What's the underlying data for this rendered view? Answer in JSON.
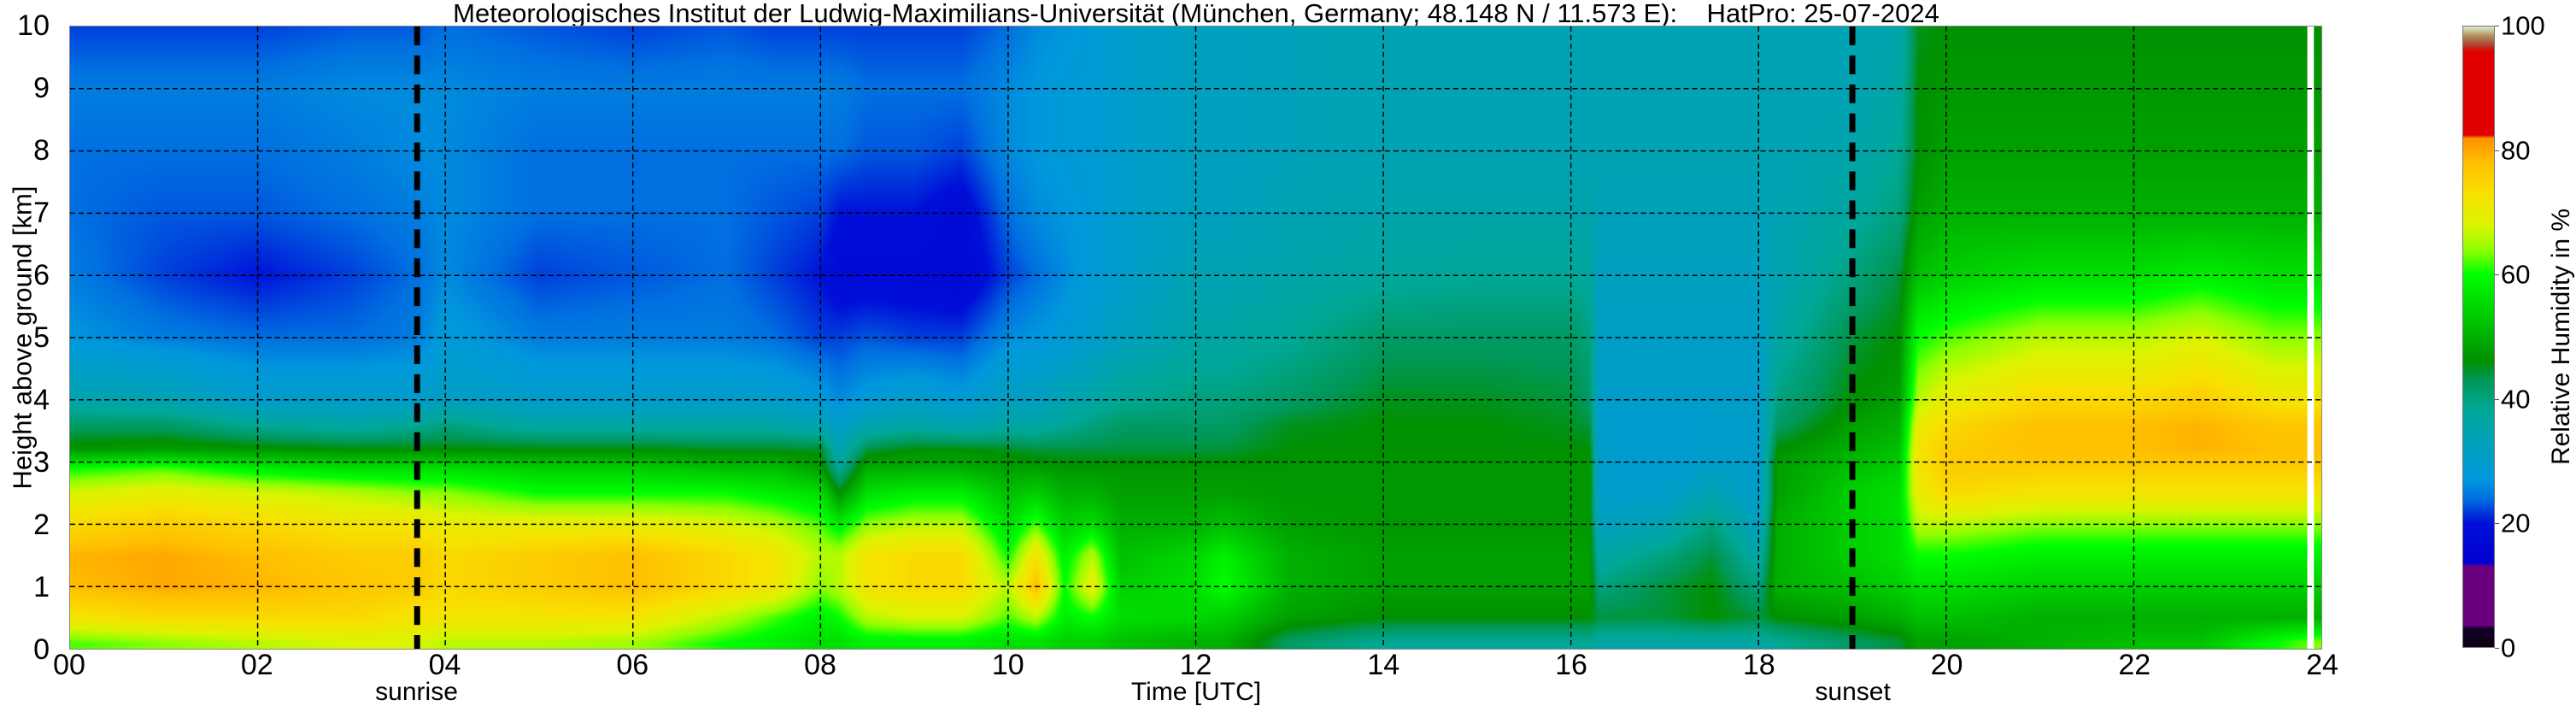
{
  "chart_data": {
    "type": "heatmap",
    "title": "Meteorologisches Institut der Ludwig-Maximilians-Universität (München, Germany; 48.148 N / 11.573 E):    HatPro: 25-07-2024",
    "xlabel": "Time [UTC]",
    "ylabel": "Height above ground [km]",
    "colorbar_label": "Relative Humidity in %",
    "xlim": [
      0,
      24
    ],
    "ylim": [
      0,
      10
    ],
    "clim": [
      0,
      100
    ],
    "grid": true,
    "x_ticks": [
      "00",
      "02",
      "04",
      "06",
      "08",
      "10",
      "12",
      "14",
      "16",
      "18",
      "20",
      "22",
      "24"
    ],
    "y_ticks": [
      "0",
      "1",
      "2",
      "3",
      "4",
      "5",
      "6",
      "7",
      "8",
      "9",
      "10"
    ],
    "colorbar_ticks": [
      "0",
      "20",
      "40",
      "60",
      "80",
      "100"
    ],
    "markers": [
      {
        "label": "sunrise",
        "time": 3.7
      },
      {
        "label": "sunset",
        "time": 19.0
      }
    ],
    "data_gap": [
      23.85,
      23.92
    ],
    "heights_km": [
      0.1,
      0.5,
      1,
      1.5,
      2,
      2.5,
      2.9,
      3.2,
      3.6,
      4,
      5,
      6,
      7,
      8,
      9,
      10
    ],
    "times_h": [
      0,
      1,
      2,
      3,
      3.7,
      4,
      5,
      6,
      7,
      7.5,
      8,
      8.2,
      8.5,
      9,
      9.5,
      10,
      10.3,
      10.6,
      10.9,
      11.2,
      12,
      12.3,
      13,
      14,
      15,
      16,
      16.2,
      16.3,
      17,
      17.5,
      18,
      18.2,
      19,
      19.5,
      19.7,
      20,
      21,
      22,
      22.7,
      23.5,
      24
    ],
    "rh_percent": [
      [
        62,
        72,
        78,
        79,
        74,
        68,
        60,
        47,
        42,
        35,
        27,
        25,
        24,
        24,
        25,
        22
      ],
      [
        64,
        74,
        80,
        80,
        76,
        70,
        62,
        48,
        42,
        34,
        25,
        22,
        23,
        24,
        25,
        22
      ],
      [
        66,
        74,
        79,
        78,
        74,
        68,
        58,
        47,
        38,
        30,
        24,
        20,
        23,
        24,
        25,
        22
      ],
      [
        68,
        74,
        77,
        76,
        72,
        66,
        56,
        46,
        36,
        30,
        24,
        22,
        24,
        25,
        26,
        23
      ],
      [
        68,
        72,
        76,
        76,
        72,
        64,
        56,
        46,
        38,
        30,
        25,
        24,
        25,
        26,
        26,
        23
      ],
      [
        66,
        72,
        74,
        74,
        70,
        64,
        56,
        46,
        40,
        32,
        28,
        26,
        26,
        26,
        26,
        24
      ],
      [
        66,
        72,
        76,
        76,
        70,
        60,
        54,
        46,
        36,
        30,
        25,
        22,
        24,
        24,
        25,
        23
      ],
      [
        65,
        72,
        78,
        78,
        70,
        60,
        54,
        46,
        36,
        30,
        25,
        23,
        24,
        24,
        25,
        22
      ],
      [
        60,
        66,
        74,
        74,
        68,
        60,
        52,
        45,
        36,
        30,
        25,
        24,
        24,
        24,
        25,
        23
      ],
      [
        58,
        62,
        72,
        72,
        66,
        58,
        52,
        45,
        36,
        30,
        24,
        22,
        23,
        24,
        25,
        22
      ],
      [
        56,
        58,
        64,
        66,
        62,
        56,
        48,
        45,
        34,
        28,
        22,
        20,
        22,
        24,
        25,
        22
      ],
      [
        56,
        60,
        66,
        66,
        58,
        46,
        38,
        34,
        30,
        26,
        22,
        18,
        20,
        24,
        25,
        22
      ],
      [
        58,
        66,
        72,
        72,
        64,
        56,
        50,
        44,
        34,
        28,
        23,
        18,
        20,
        23,
        24,
        22
      ],
      [
        58,
        68,
        74,
        74,
        66,
        58,
        50,
        46,
        36,
        30,
        22,
        18,
        20,
        23,
        24,
        22
      ],
      [
        58,
        68,
        74,
        74,
        66,
        58,
        50,
        46,
        34,
        28,
        22,
        17,
        18,
        22,
        24,
        22
      ],
      [
        56,
        62,
        66,
        60,
        56,
        52,
        48,
        45,
        36,
        32,
        26,
        22,
        24,
        26,
        26,
        24
      ],
      [
        56,
        66,
        78,
        72,
        62,
        54,
        48,
        44,
        36,
        32,
        27,
        24,
        26,
        27,
        27,
        26
      ],
      [
        54,
        58,
        60,
        58,
        54,
        50,
        47,
        44,
        38,
        34,
        28,
        26,
        27,
        28,
        28,
        27
      ],
      [
        54,
        60,
        70,
        66,
        56,
        50,
        47,
        44,
        40,
        36,
        30,
        28,
        28,
        28,
        28,
        28
      ],
      [
        52,
        56,
        54,
        52,
        50,
        48,
        47,
        44,
        42,
        38,
        32,
        30,
        30,
        30,
        30,
        30
      ],
      [
        50,
        55,
        56,
        55,
        50,
        48,
        47,
        44,
        42,
        40,
        36,
        34,
        32,
        32,
        32,
        32
      ],
      [
        50,
        54,
        60,
        58,
        52,
        48,
        47,
        44,
        42,
        40,
        36,
        34,
        32,
        32,
        32,
        32
      ],
      [
        42,
        48,
        50,
        50,
        48,
        47,
        47,
        46,
        45,
        42,
        38,
        35,
        34,
        33,
        33,
        33
      ],
      [
        38,
        46,
        48,
        48,
        47,
        47,
        47,
        46,
        46,
        45,
        42,
        37,
        35,
        34,
        34,
        34
      ],
      [
        38,
        46,
        48,
        48,
        47,
        47,
        47,
        46,
        46,
        45,
        42,
        38,
        35,
        34,
        34,
        34
      ],
      [
        38,
        46,
        48,
        48,
        47,
        47,
        47,
        46,
        45,
        44,
        42,
        38,
        35,
        34,
        34,
        34
      ],
      [
        38,
        46,
        48,
        48,
        47,
        47,
        47,
        46,
        44,
        42,
        40,
        37,
        35,
        34,
        34,
        34
      ],
      [
        36,
        44,
        40,
        36,
        32,
        30,
        30,
        30,
        30,
        30,
        31,
        32,
        33,
        34,
        34,
        34
      ],
      [
        36,
        44,
        44,
        40,
        34,
        30,
        29,
        29,
        29,
        30,
        31,
        32,
        33,
        34,
        34,
        34
      ],
      [
        36,
        46,
        46,
        44,
        40,
        34,
        31,
        30,
        30,
        30,
        31,
        32,
        33,
        34,
        34,
        34
      ],
      [
        36,
        44,
        40,
        36,
        32,
        30,
        30,
        30,
        30,
        30,
        31,
        32,
        33,
        34,
        34,
        34
      ],
      [
        38,
        46,
        50,
        50,
        50,
        48,
        48,
        46,
        42,
        40,
        36,
        34,
        34,
        34,
        34,
        34
      ],
      [
        42,
        48,
        52,
        54,
        54,
        54,
        52,
        50,
        48,
        46,
        44,
        40,
        37,
        35,
        34,
        34
      ],
      [
        44,
        50,
        54,
        56,
        56,
        56,
        54,
        52,
        50,
        48,
        46,
        44,
        40,
        38,
        36,
        35
      ],
      [
        48,
        52,
        56,
        60,
        66,
        70,
        72,
        72,
        70,
        66,
        60,
        52,
        48,
        46,
        46,
        45
      ],
      [
        48,
        52,
        56,
        60,
        66,
        74,
        76,
        76,
        74,
        70,
        62,
        54,
        50,
        48,
        47,
        46
      ],
      [
        50,
        50,
        54,
        58,
        64,
        72,
        76,
        78,
        78,
        74,
        66,
        56,
        50,
        48,
        47,
        46
      ],
      [
        52,
        50,
        54,
        58,
        64,
        72,
        76,
        78,
        78,
        74,
        66,
        56,
        50,
        48,
        47,
        46
      ],
      [
        52,
        50,
        54,
        58,
        64,
        72,
        76,
        79,
        79,
        76,
        68,
        58,
        50,
        48,
        47,
        46
      ],
      [
        60,
        50,
        54,
        58,
        64,
        72,
        76,
        78,
        77,
        72,
        64,
        56,
        50,
        48,
        47,
        46
      ],
      [
        64,
        50,
        54,
        58,
        64,
        72,
        76,
        78,
        77,
        72,
        64,
        56,
        50,
        48,
        47,
        46
      ]
    ],
    "colormap": [
      [
        0,
        "#0a0010"
      ],
      [
        3,
        "#140028"
      ],
      [
        3.5,
        "#6a0080"
      ],
      [
        13,
        "#6a0080"
      ],
      [
        13.5,
        "#0000d0"
      ],
      [
        20,
        "#0010d8"
      ],
      [
        24,
        "#0070e0"
      ],
      [
        27,
        "#0098dc"
      ],
      [
        32,
        "#00a0c0"
      ],
      [
        38,
        "#00a898"
      ],
      [
        43,
        "#009858"
      ],
      [
        46,
        "#009000"
      ],
      [
        52,
        "#00c000"
      ],
      [
        60,
        "#00ff00"
      ],
      [
        64,
        "#90ff00"
      ],
      [
        68,
        "#dcf400"
      ],
      [
        73,
        "#f8e000"
      ],
      [
        78,
        "#ffc000"
      ],
      [
        82,
        "#ff9000"
      ],
      [
        82.5,
        "#e00000"
      ],
      [
        96,
        "#e00000"
      ],
      [
        97,
        "#b04030"
      ],
      [
        98.5,
        "#b09060"
      ],
      [
        99.3,
        "#c8c890"
      ],
      [
        100,
        "#e0e0e0"
      ]
    ]
  }
}
